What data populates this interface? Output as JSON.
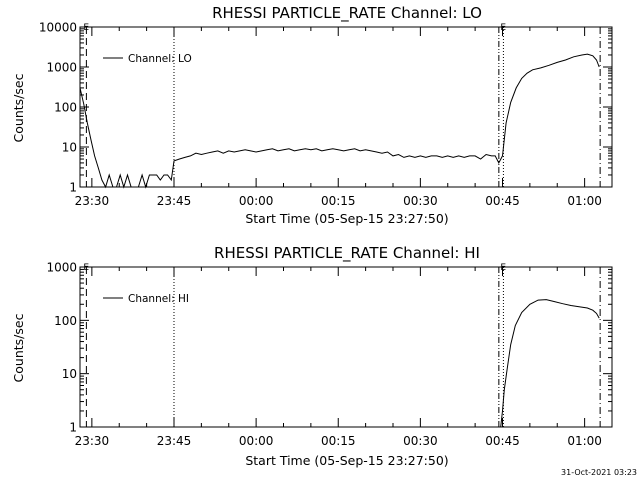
{
  "stamp": "31-Oct-2021 03:23",
  "chart_data": [
    {
      "type": "line",
      "title": "RHESSI PARTICLE_RATE Channel: LO",
      "xlabel": "Start Time (05-Sep-15 23:27:50)",
      "ylabel": "Counts/sec",
      "yscale": "log",
      "ylim": [
        1,
        10000
      ],
      "yticks": [
        {
          "value": 1,
          "label": "1"
        },
        {
          "value": 10,
          "label": "10"
        },
        {
          "value": 100,
          "label": "100"
        },
        {
          "value": 1000,
          "label": "1000"
        },
        {
          "value": 10000,
          "label": "10000"
        }
      ],
      "xlim": [
        "23:27:50",
        "01:05:00"
      ],
      "xticks": [
        "23:30",
        "23:45",
        "00:00",
        "00:15",
        "00:30",
        "00:45",
        "01:00"
      ],
      "legend": {
        "position": "top-left",
        "entries": [
          "Channel: LO"
        ]
      },
      "series": [
        {
          "name": "Channel: LO",
          "x": [
            "23:27:50",
            "23:28:30",
            "23:29:10",
            "23:29:50",
            "23:30:30",
            "23:31:10",
            "23:31:50",
            "23:32:30",
            "23:33:10",
            "23:33:50",
            "23:34:30",
            "23:35:10",
            "23:35:50",
            "23:36:30",
            "23:37:10",
            "23:37:50",
            "23:38:30",
            "23:39:10",
            "23:39:50",
            "23:40:30",
            "23:41:10",
            "23:41:50",
            "23:42:30",
            "23:43:10",
            "23:43:50",
            "23:44:30",
            "23:45:00",
            "23:46:00",
            "23:47:00",
            "23:48:00",
            "23:49:00",
            "23:50:00",
            "23:51:00",
            "23:52:00",
            "23:53:00",
            "23:54:00",
            "23:55:00",
            "23:56:00",
            "23:57:00",
            "23:58:00",
            "23:59:00",
            "00:00:00",
            "00:01:00",
            "00:02:00",
            "00:03:00",
            "00:04:00",
            "00:05:00",
            "00:06:00",
            "00:07:00",
            "00:08:00",
            "00:09:00",
            "00:10:00",
            "00:11:00",
            "00:12:00",
            "00:13:00",
            "00:14:00",
            "00:15:00",
            "00:16:00",
            "00:17:00",
            "00:18:00",
            "00:19:00",
            "00:20:00",
            "00:21:00",
            "00:22:00",
            "00:23:00",
            "00:24:00",
            "00:25:00",
            "00:26:00",
            "00:27:00",
            "00:28:00",
            "00:29:00",
            "00:30:00",
            "00:31:00",
            "00:32:00",
            "00:33:00",
            "00:34:00",
            "00:35:00",
            "00:36:00",
            "00:37:00",
            "00:38:00",
            "00:39:00",
            "00:40:00",
            "00:41:00",
            "00:42:00",
            "00:43:00",
            "00:43:40",
            "00:44:20",
            "00:45:00",
            "00:45:40",
            "00:46:30",
            "00:47:30",
            "00:48:30",
            "00:49:30",
            "00:50:30",
            "00:52:00",
            "00:53:30",
            "00:55:00",
            "00:56:30",
            "00:58:00",
            "00:59:30",
            "01:00:30",
            "01:01:30",
            "01:02:10",
            "01:02:40"
          ],
          "y": [
            300,
            120,
            40,
            15,
            6,
            3,
            1.5,
            1,
            2,
            1,
            1,
            2,
            1,
            2,
            1,
            1,
            1,
            2,
            1,
            2,
            2,
            2,
            1.5,
            2,
            2,
            1.5,
            4.5,
            5,
            5.5,
            6,
            7,
            6.5,
            7,
            7.5,
            8,
            7,
            8,
            7.5,
            8,
            8.5,
            8,
            7.5,
            8,
            8.5,
            9,
            8,
            8.5,
            9,
            8,
            8.5,
            9,
            8.5,
            9,
            8,
            8.5,
            9,
            8.5,
            8,
            8.5,
            9,
            8,
            8.5,
            8,
            7.5,
            7,
            7.5,
            6,
            6.5,
            5.5,
            6,
            5.5,
            6,
            5.5,
            6,
            6,
            5.5,
            6,
            5.5,
            6,
            5.5,
            6,
            6,
            5,
            6.5,
            6,
            6,
            4,
            6,
            40,
            130,
            300,
            520,
            700,
            850,
            950,
            1100,
            1300,
            1500,
            1800,
            2000,
            2100,
            1900,
            1500,
            1000
          ]
        }
      ],
      "vlines": [
        {
          "x": "23:29:00",
          "style": "dashed"
        },
        {
          "x": "23:45:00",
          "style": "dotted"
        },
        {
          "x": "00:44:20",
          "style": "dash-dot-dot"
        },
        {
          "x": "00:45:10",
          "style": "dotted"
        },
        {
          "x": "01:02:50",
          "style": "dash-dot"
        }
      ],
      "markers": [
        {
          "x": "23:29:00",
          "label": "E"
        },
        {
          "x": "00:45:10",
          "label": "E"
        }
      ]
    },
    {
      "type": "line",
      "title": "RHESSI PARTICLE_RATE Channel: HI",
      "xlabel": "Start Time (05-Sep-15 23:27:50)",
      "ylabel": "Counts/sec",
      "yscale": "log",
      "ylim": [
        1,
        1000
      ],
      "yticks": [
        {
          "value": 1,
          "label": "1"
        },
        {
          "value": 10,
          "label": "10"
        },
        {
          "value": 100,
          "label": "100"
        },
        {
          "value": 1000,
          "label": "1000"
        }
      ],
      "xlim": [
        "23:27:50",
        "01:05:00"
      ],
      "xticks": [
        "23:30",
        "23:45",
        "00:00",
        "00:15",
        "00:30",
        "00:45",
        "01:00"
      ],
      "legend": {
        "position": "top-left",
        "entries": [
          "Channel: HI"
        ]
      },
      "series": [
        {
          "name": "Channel: HI",
          "x": [
            "00:44:40",
            "00:45:00",
            "00:45:20",
            "00:45:50",
            "00:46:30",
            "00:47:20",
            "00:48:30",
            "00:50:00",
            "00:51:30",
            "00:53:00",
            "00:54:30",
            "00:56:00",
            "00:57:30",
            "00:59:00",
            "01:00:30",
            "01:01:30",
            "01:02:10",
            "01:02:40"
          ],
          "y": [
            1,
            2,
            5,
            12,
            35,
            80,
            140,
            200,
            240,
            245,
            225,
            205,
            190,
            180,
            170,
            155,
            135,
            110
          ]
        }
      ],
      "vlines": [
        {
          "x": "23:29:00",
          "style": "dashed"
        },
        {
          "x": "23:45:00",
          "style": "dotted"
        },
        {
          "x": "00:44:20",
          "style": "dash-dot-dot"
        },
        {
          "x": "00:45:10",
          "style": "dotted"
        },
        {
          "x": "01:02:50",
          "style": "dash-dot"
        }
      ],
      "markers": [
        {
          "x": "23:29:00",
          "label": "E"
        },
        {
          "x": "00:45:10",
          "label": "E"
        }
      ]
    }
  ]
}
